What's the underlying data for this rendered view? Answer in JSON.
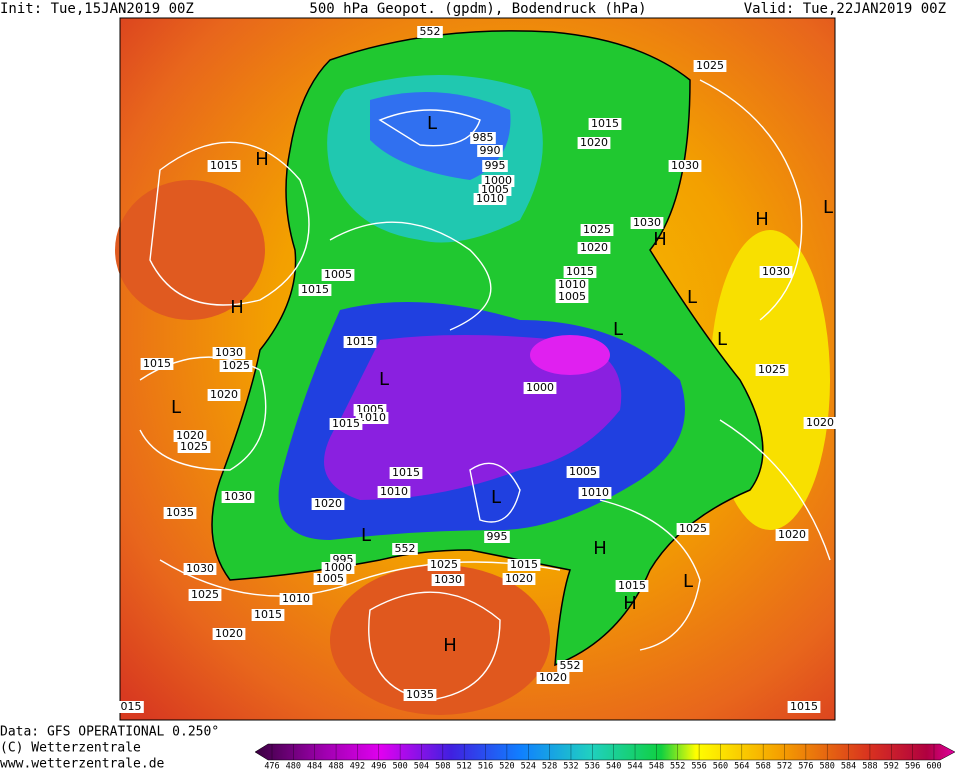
{
  "header": {
    "init": "Init: Tue,15JAN2019 00Z",
    "title": "500 hPa Geopot. (gpdm), Bodendruck (hPa)",
    "valid": "Valid: Tue,22JAN2019 00Z"
  },
  "footer": {
    "data": "Data: GFS OPERATIONAL 0.250°",
    "copyright": "(C) Wetterzentrale",
    "url": "www.wetterzentrale.de"
  },
  "map": {
    "labels": [
      "552",
      "1025",
      "1015",
      "L",
      "985",
      "990",
      "995",
      "1020",
      "1015",
      "H",
      "1000",
      "1005",
      "1010",
      "1030",
      "H",
      "L",
      "1030",
      "1025",
      "1020",
      "H",
      "1030",
      "1015",
      "1010",
      "1005",
      "L",
      "1005",
      "1015",
      "H",
      "L",
      "L",
      "1015",
      "1030",
      "1015",
      "1025",
      "L",
      "1025",
      "1000",
      "1020",
      "L",
      "1005",
      "1010",
      "1015",
      "1020",
      "1020",
      "1025",
      "1015",
      "1005",
      "1010",
      "1010",
      "L",
      "1030",
      "1020",
      "1035",
      "995",
      "1025",
      "L",
      "1020",
      "552",
      "H",
      "995",
      "1000",
      "1005",
      "1025",
      "1015",
      "1030",
      "1020",
      "1030",
      "1015",
      "L",
      "1025",
      "1010",
      "H",
      "1015",
      "1020",
      "H",
      "552",
      "1020",
      "1035",
      "015",
      "1015"
    ]
  },
  "colorbar": {
    "ticks": [
      476,
      480,
      484,
      488,
      492,
      496,
      500,
      504,
      508,
      512,
      516,
      520,
      524,
      528,
      532,
      536,
      540,
      544,
      548,
      552,
      556,
      560,
      564,
      568,
      572,
      576,
      580,
      584,
      588,
      592,
      596,
      600
    ]
  }
}
